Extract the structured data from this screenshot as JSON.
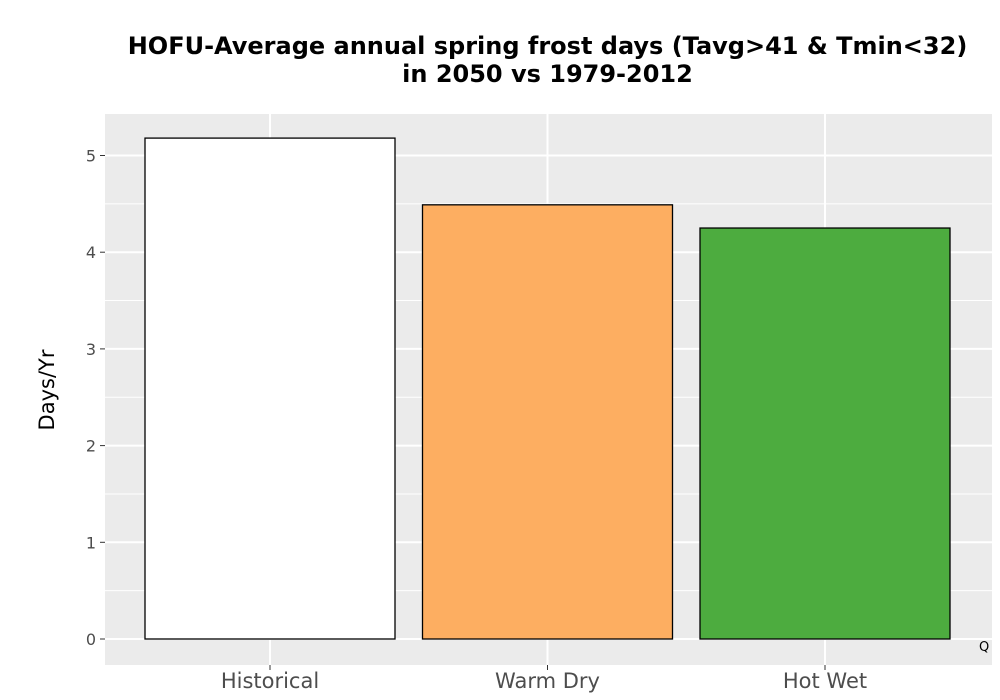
{
  "chart_data": {
    "type": "bar",
    "title_lines": [
      "HOFU-Average annual spring frost days (Tavg>41 & Tmin<32)",
      "in 2050 vs 1979-2012"
    ],
    "xlabel": "",
    "ylabel": "Days/Yr",
    "categories": [
      "Historical",
      "Warm Dry",
      "Hot Wet"
    ],
    "values": [
      5.18,
      4.49,
      4.25
    ],
    "colors": [
      "#ffffff",
      "#fdae61",
      "#4dac3f"
    ],
    "ylim": [
      0,
      5.4
    ],
    "yticks": [
      0,
      1,
      2,
      3,
      4,
      5
    ],
    "grid": true,
    "panel_background": "#ebebeb"
  },
  "corner_mark": "Q"
}
